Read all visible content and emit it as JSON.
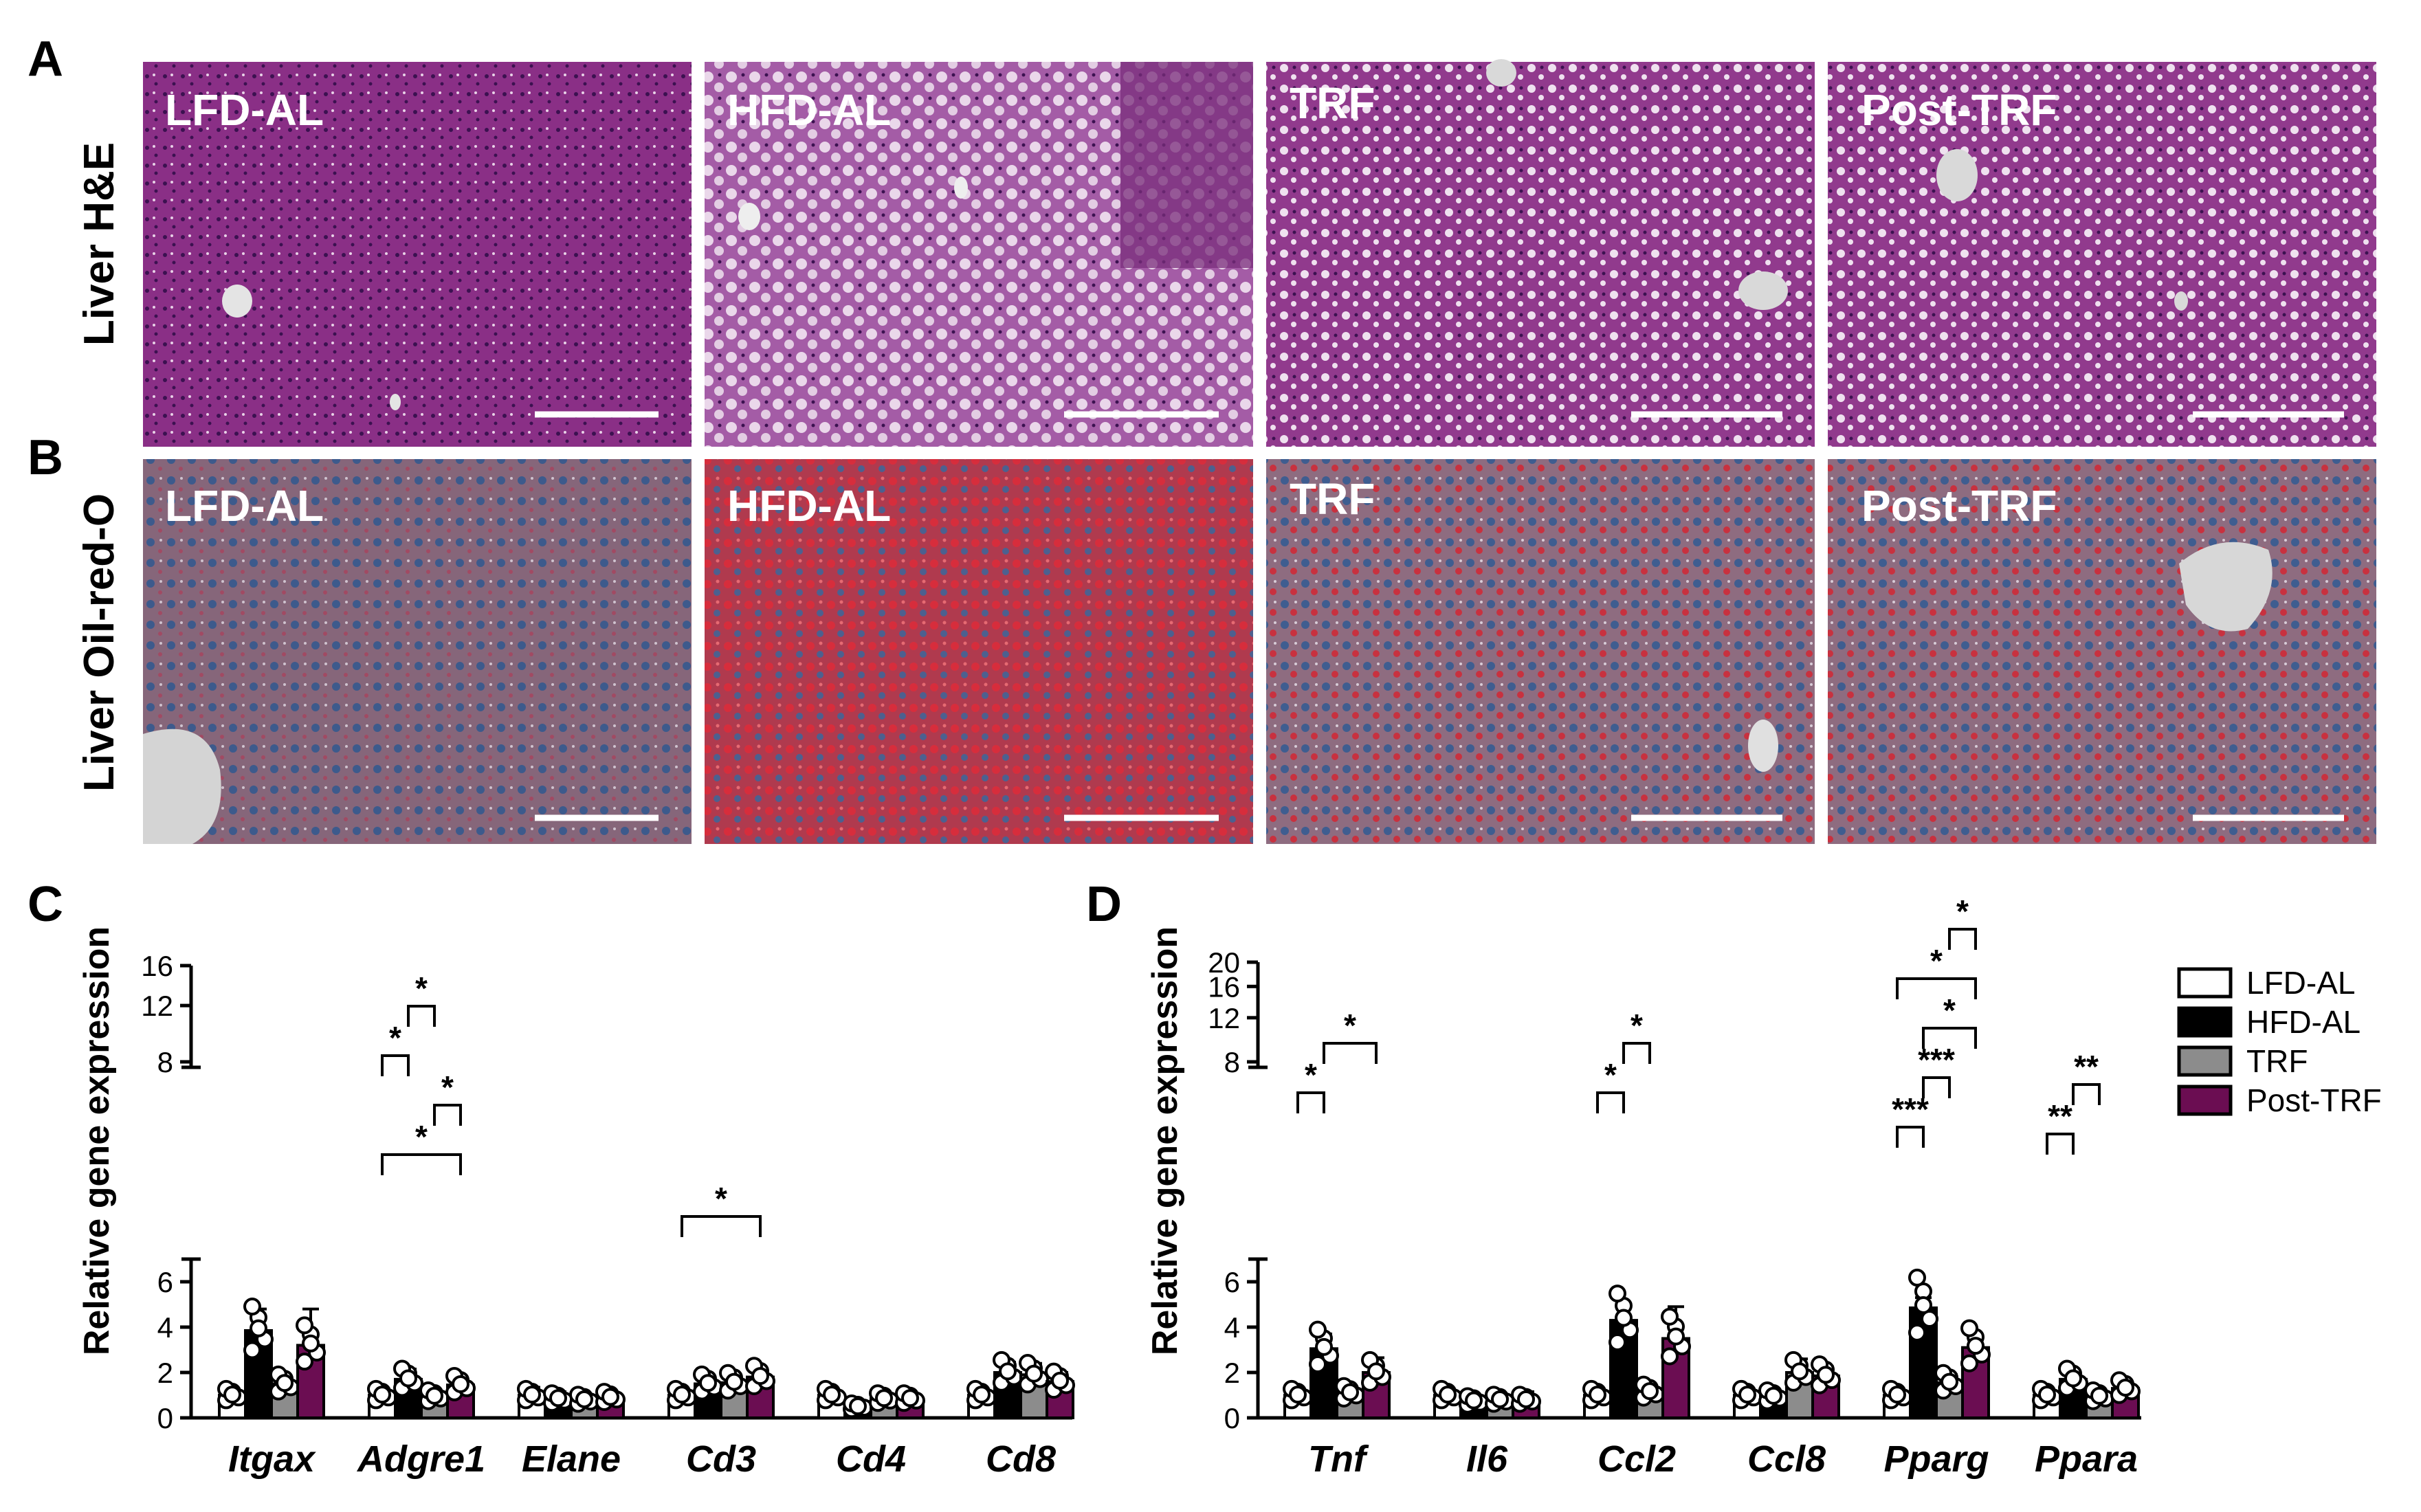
{
  "panel_labels": {
    "a": "A",
    "b": "B",
    "c": "C",
    "d": "D"
  },
  "histology": {
    "row_labels": [
      "Liver H&E",
      "Liver Oil-red-O"
    ],
    "groups": [
      "LFD-AL",
      "HFD-AL",
      "TRF",
      "Post-TRF"
    ]
  },
  "legend": {
    "items": [
      {
        "label": "LFD-AL",
        "color": "#ffffff"
      },
      {
        "label": "HFD-AL",
        "color": "#000000"
      },
      {
        "label": "TRF",
        "color": "#8c8c8c"
      },
      {
        "label": "Post-TRF",
        "color": "#6b0d52"
      }
    ]
  },
  "chart_data": [
    {
      "type": "bar",
      "panel": "C",
      "ylabel": "Relative gene expression",
      "categories": [
        "Itgax",
        "Adgre1",
        "Elane",
        "Cd3",
        "Cd4",
        "Cd8"
      ],
      "series": [
        {
          "name": "LFD-AL",
          "values": [
            1.0,
            1.0,
            1.0,
            1.0,
            1.0,
            1.0
          ],
          "errors": [
            0.15,
            0.1,
            0.35,
            0.1,
            0.15,
            0.25
          ]
        },
        {
          "name": "HFD-AL",
          "values": [
            3.85,
            1.7,
            0.85,
            1.5,
            0.5,
            2.0
          ],
          "errors": [
            0.95,
            0.45,
            0.3,
            0.3,
            0.1,
            0.45
          ]
        },
        {
          "name": "TRF",
          "values": [
            1.5,
            0.95,
            0.8,
            1.55,
            0.85,
            1.9
          ],
          "errors": [
            0.3,
            0.1,
            0.2,
            0.2,
            0.1,
            0.5
          ]
        },
        {
          "name": "Post-TRF",
          "values": [
            3.2,
            1.45,
            0.9,
            1.8,
            0.85,
            1.6
          ],
          "errors": [
            1.6,
            0.25,
            0.15,
            0.2,
            0.1,
            0.4
          ]
        }
      ],
      "y_ticks_lower": [
        "0",
        "2",
        "4",
        "6"
      ],
      "y_ticks_upper": [
        "8",
        "12",
        "16"
      ],
      "y_break": [
        7,
        8
      ],
      "ylim": [
        0,
        16
      ],
      "significance": [
        {
          "category": "Adgre1",
          "from": "LFD-AL",
          "to": "Post-TRF",
          "label": "*"
        },
        {
          "category": "Adgre1",
          "from": "TRF",
          "to": "Post-TRF",
          "label": "*"
        },
        {
          "category": "Adgre1",
          "from": "LFD-AL",
          "to": "HFD-AL",
          "label": "*"
        },
        {
          "category": "Adgre1",
          "from": "HFD-AL",
          "to": "TRF",
          "label": "*"
        },
        {
          "category": "Cd3",
          "from": "LFD-AL",
          "to": "Post-TRF",
          "label": "*"
        }
      ]
    },
    {
      "type": "bar",
      "panel": "D",
      "ylabel": "Relative gene expression",
      "categories": [
        "Tnf",
        "Il6",
        "Ccl2",
        "Ccl8",
        "Pparg",
        "Ppara"
      ],
      "series": [
        {
          "name": "LFD-AL",
          "values": [
            1.0,
            1.0,
            1.0,
            1.0,
            1.0,
            1.0
          ],
          "errors": [
            0.2,
            0.25,
            0.25,
            0.2,
            0.25,
            0.1
          ]
        },
        {
          "name": "HFD-AL",
          "values": [
            3.05,
            0.75,
            4.3,
            0.95,
            4.85,
            1.7
          ],
          "errors": [
            0.65,
            0.2,
            0.75,
            0.2,
            0.45,
            0.15
          ]
        },
        {
          "name": "TRF",
          "values": [
            1.1,
            0.8,
            1.15,
            2.0,
            1.55,
            0.95
          ],
          "errors": [
            0.2,
            0.15,
            0.25,
            0.6,
            0.35,
            0.1
          ]
        },
        {
          "name": "Post-TRF",
          "values": [
            2.0,
            0.8,
            3.5,
            1.85,
            3.1,
            1.3
          ],
          "errors": [
            0.65,
            0.35,
            1.4,
            0.4,
            0.35,
            0.2
          ]
        }
      ],
      "y_ticks_lower": [
        "0",
        "2",
        "4",
        "6"
      ],
      "y_ticks_upper": [
        "8",
        "12",
        "16",
        "20"
      ],
      "y_break": [
        7,
        8
      ],
      "ylim": [
        0,
        20
      ],
      "significance": [
        {
          "category": "Tnf",
          "from": "LFD-AL",
          "to": "HFD-AL",
          "label": "*"
        },
        {
          "category": "Tnf",
          "from": "HFD-AL",
          "to": "Post-TRF",
          "label": "*"
        },
        {
          "category": "Ccl2",
          "from": "LFD-AL",
          "to": "HFD-AL",
          "label": "*"
        },
        {
          "category": "Ccl2",
          "from": "HFD-AL",
          "to": "TRF",
          "label": "*"
        },
        {
          "category": "Pparg",
          "from": "LFD-AL",
          "to": "HFD-AL",
          "label": "***"
        },
        {
          "category": "Pparg",
          "from": "HFD-AL",
          "to": "TRF",
          "label": "***"
        },
        {
          "category": "Pparg",
          "from": "HFD-AL",
          "to": "Post-TRF",
          "label": "*"
        },
        {
          "category": "Pparg",
          "from": "LFD-AL",
          "to": "Post-TRF",
          "label": "*"
        },
        {
          "category": "Pparg",
          "from": "TRF",
          "to": "Post-TRF",
          "label": "*"
        },
        {
          "category": "Ppara",
          "from": "LFD-AL",
          "to": "HFD-AL",
          "label": "**"
        },
        {
          "category": "Ppara",
          "from": "HFD-AL",
          "to": "TRF",
          "label": "**"
        }
      ]
    }
  ]
}
